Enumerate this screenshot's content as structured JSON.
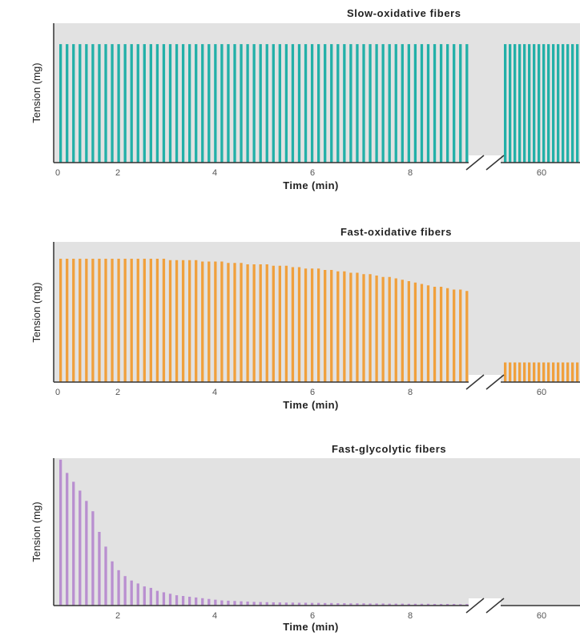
{
  "chart_data": [
    {
      "type": "bar",
      "title": "Slow-oxidative fibers",
      "xlabel": "Time (min)",
      "ylabel": "Tension (mg)",
      "x_ticks": [
        "0",
        "2",
        "4",
        "6",
        "8",
        "60"
      ],
      "axis_break": true,
      "color": "#22b0a8",
      "ylim": [
        0,
        1
      ],
      "values": [
        0.85,
        0.85,
        0.85,
        0.85,
        0.85,
        0.85,
        0.85,
        0.85,
        0.85,
        0.85,
        0.85,
        0.85,
        0.85,
        0.85,
        0.85,
        0.85,
        0.85,
        0.85,
        0.85,
        0.85,
        0.85,
        0.85,
        0.85,
        0.85,
        0.85,
        0.85,
        0.85,
        0.85,
        0.85,
        0.85,
        0.85,
        0.85,
        0.85,
        0.85,
        0.85,
        0.85,
        0.85,
        0.85,
        0.85,
        0.85,
        0.85,
        0.85,
        0.85,
        0.85,
        0.85,
        0.85,
        0.85,
        0.85,
        0.85,
        0.85,
        0.85,
        0.85,
        0.85,
        0.85,
        0.85,
        0.85,
        0.85,
        0.85,
        0.85,
        0.85,
        0.85,
        0.85,
        0.85,
        0.85
      ],
      "values_after_break": [
        0.85,
        0.85,
        0.85,
        0.85,
        0.85,
        0.85,
        0.85,
        0.85,
        0.85,
        0.85,
        0.85,
        0.85,
        0.85,
        0.85,
        0.85,
        0.85
      ]
    },
    {
      "type": "bar",
      "title": "Fast-oxidative fibers",
      "xlabel": "Time (min)",
      "ylabel": "Tension (mg)",
      "x_ticks": [
        "0",
        "2",
        "4",
        "6",
        "8",
        "60"
      ],
      "axis_break": true,
      "color": "#f0a03c",
      "ylim": [
        0,
        1
      ],
      "values": [
        0.88,
        0.88,
        0.88,
        0.88,
        0.88,
        0.88,
        0.88,
        0.88,
        0.88,
        0.88,
        0.88,
        0.88,
        0.88,
        0.88,
        0.88,
        0.88,
        0.88,
        0.87,
        0.87,
        0.87,
        0.87,
        0.87,
        0.86,
        0.86,
        0.86,
        0.86,
        0.85,
        0.85,
        0.85,
        0.84,
        0.84,
        0.84,
        0.84,
        0.83,
        0.83,
        0.83,
        0.82,
        0.82,
        0.81,
        0.81,
        0.81,
        0.8,
        0.8,
        0.79,
        0.79,
        0.78,
        0.78,
        0.77,
        0.77,
        0.76,
        0.75,
        0.75,
        0.74,
        0.73,
        0.72,
        0.71,
        0.7,
        0.69,
        0.68,
        0.68,
        0.67,
        0.66,
        0.66,
        0.65
      ],
      "values_after_break": [
        0.14,
        0.14,
        0.14,
        0.14,
        0.14,
        0.14,
        0.14,
        0.14,
        0.14,
        0.14,
        0.14,
        0.14,
        0.14,
        0.14,
        0.14,
        0.14
      ]
    },
    {
      "type": "bar",
      "title": "Fast-glycolytic fibers",
      "xlabel": "Time (min)",
      "ylabel": "Tension (mg)",
      "x_ticks": [
        "2",
        "4",
        "6",
        "8",
        "60"
      ],
      "axis_break": true,
      "color": "#b98fd0",
      "ylim": [
        0,
        1
      ],
      "values": [
        0.99,
        0.9,
        0.84,
        0.78,
        0.71,
        0.64,
        0.5,
        0.4,
        0.3,
        0.24,
        0.2,
        0.17,
        0.15,
        0.13,
        0.12,
        0.1,
        0.09,
        0.08,
        0.07,
        0.065,
        0.06,
        0.055,
        0.05,
        0.045,
        0.04,
        0.035,
        0.033,
        0.031,
        0.029,
        0.027,
        0.025,
        0.024,
        0.023,
        0.022,
        0.021,
        0.02,
        0.02,
        0.019,
        0.019,
        0.018,
        0.018,
        0.017,
        0.017,
        0.016,
        0.016,
        0.015,
        0.015,
        0.015,
        0.014,
        0.014,
        0.014,
        0.013,
        0.013,
        0.013,
        0.012,
        0.012,
        0.012,
        0.012,
        0.011,
        0.011,
        0.011,
        0.011,
        0.01,
        0.01
      ],
      "values_after_break": []
    }
  ]
}
